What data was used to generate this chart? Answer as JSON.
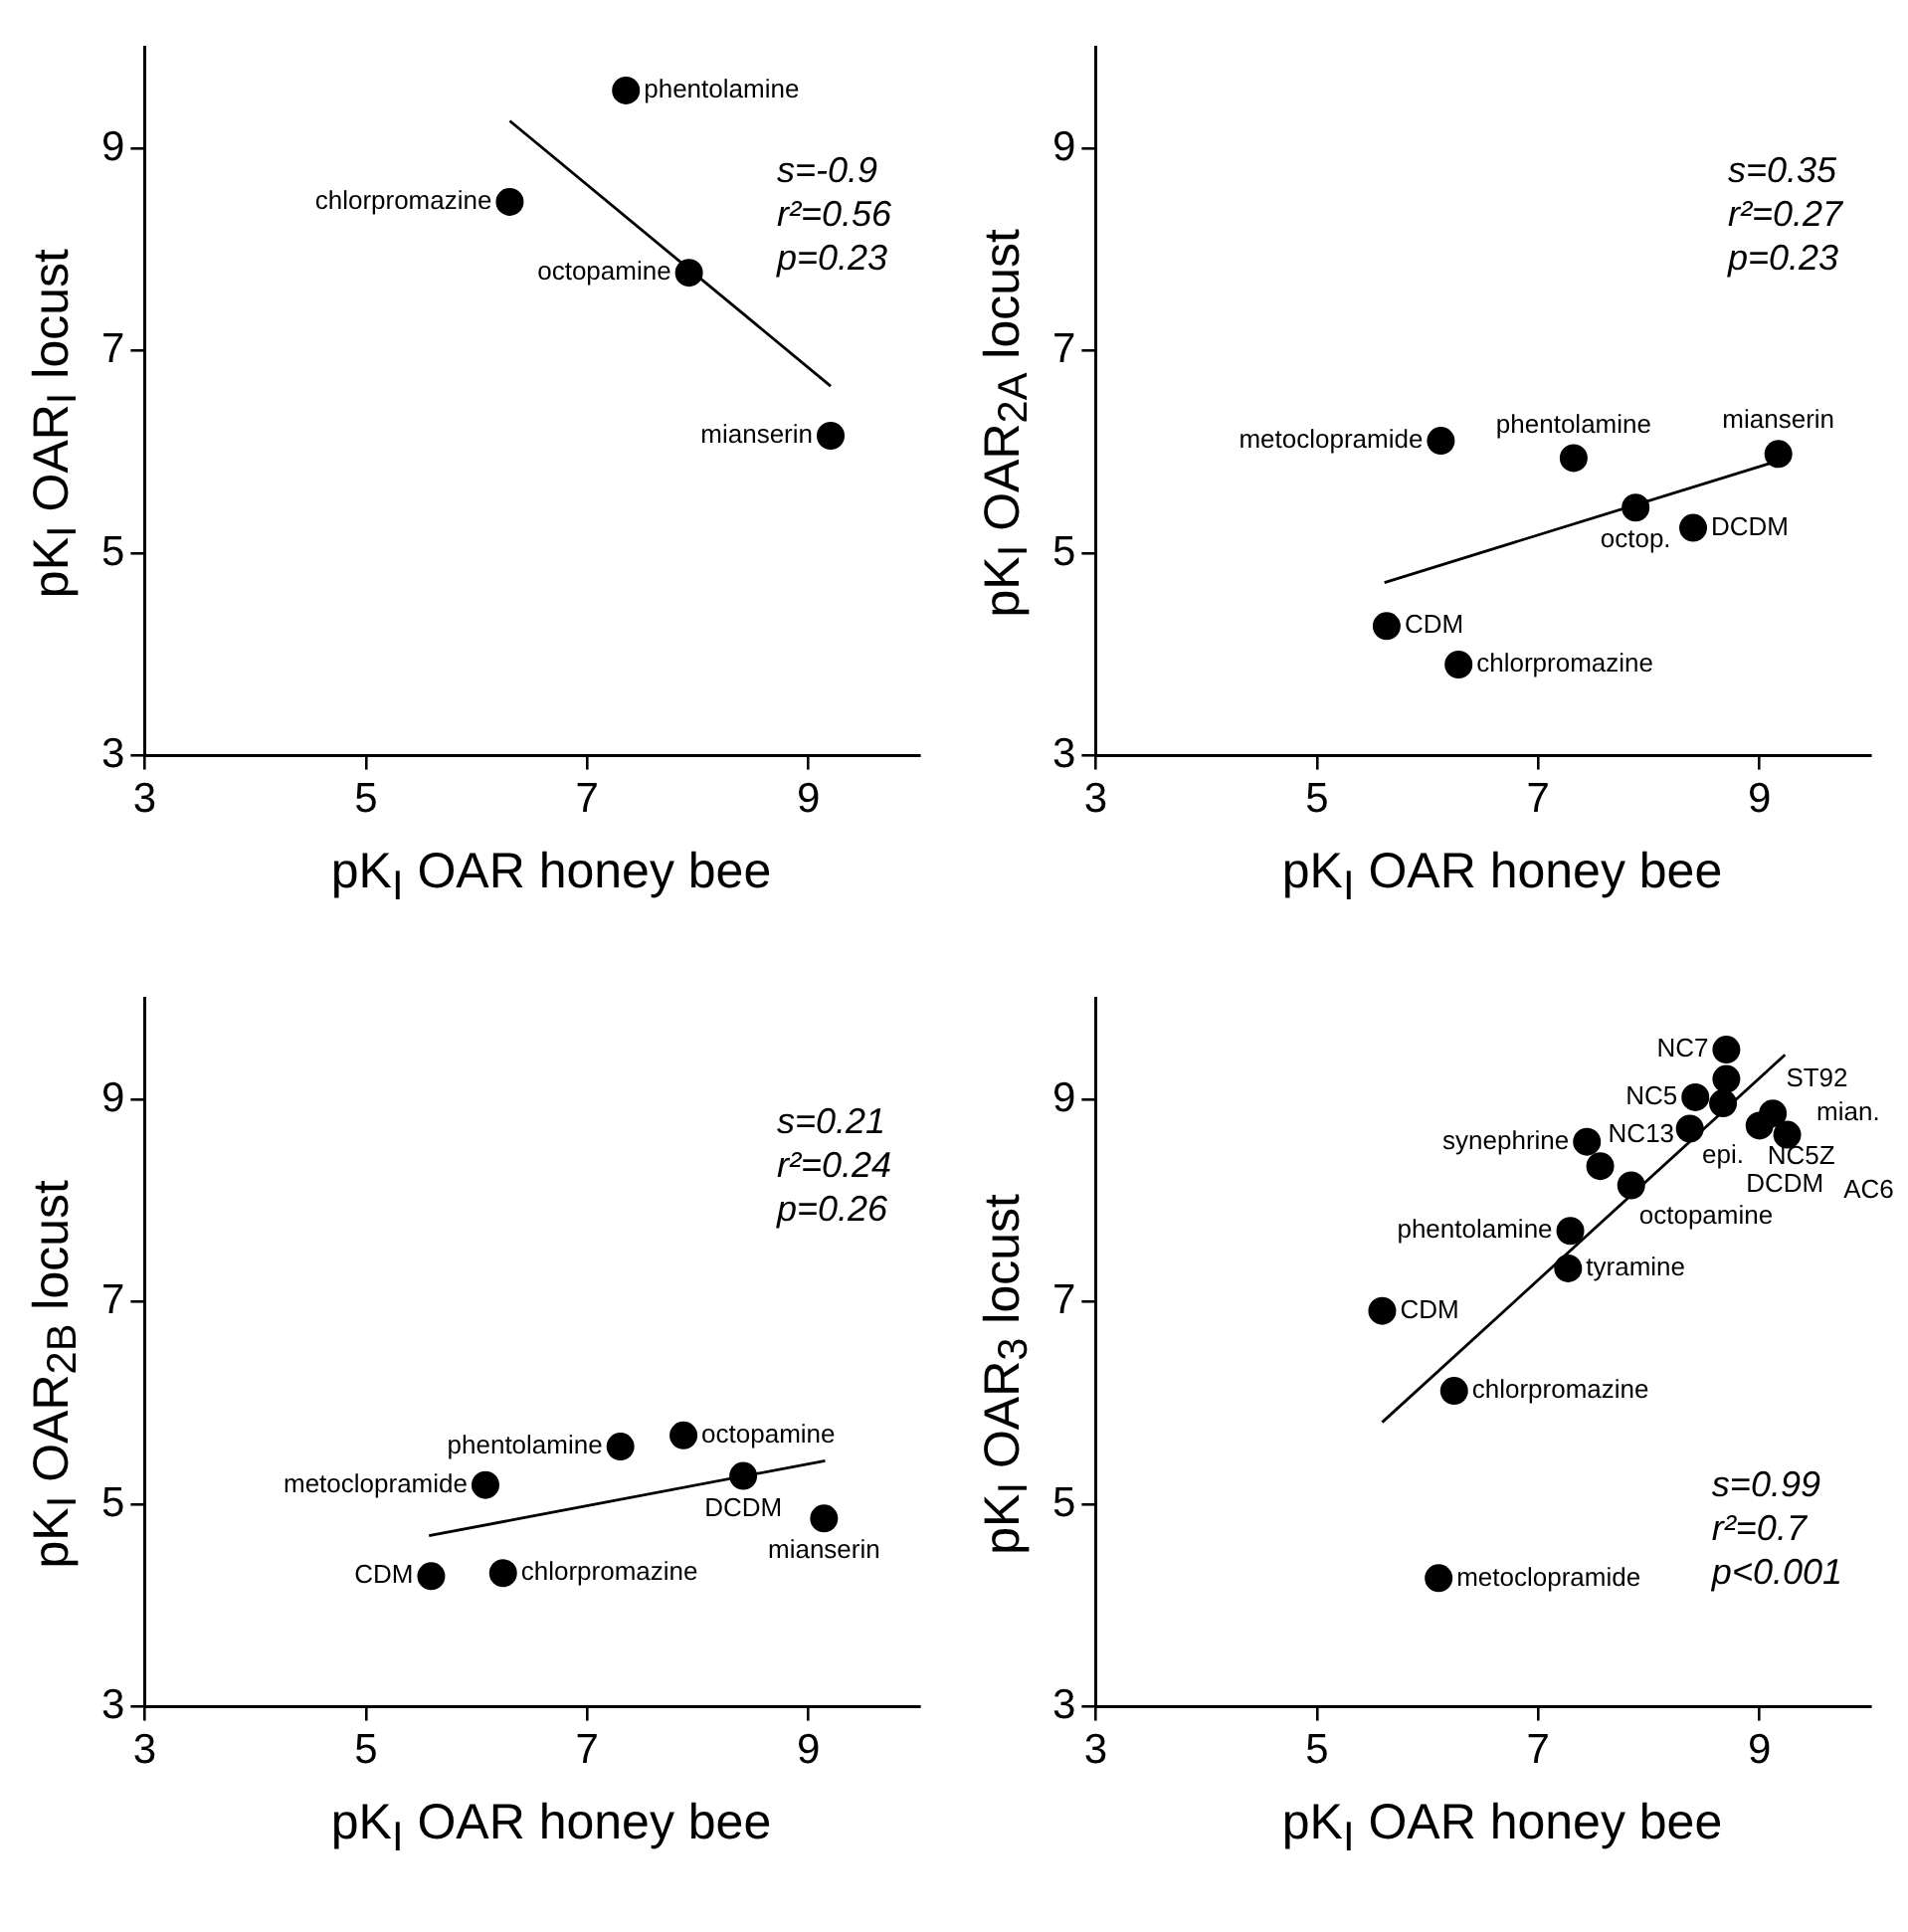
{
  "chart_data": [
    {
      "type": "scatter",
      "xlabel": "pK$_{I}$ OAR honey bee",
      "ylabel": "pK$_{I}$ OAR$_{I}$ locust",
      "xlim": [
        3,
        10
      ],
      "ylim": [
        3,
        10
      ],
      "xticks": [
        3,
        5,
        7,
        9
      ],
      "yticks": [
        3,
        5,
        7,
        9
      ],
      "grid": false,
      "legend": false,
      "annotations": [
        "s=-0.9",
        "r²=0.56",
        "p=0.23",
        {
          "text": "phentolamine",
          "x": 7.35,
          "y": 9.57
        },
        {
          "text": "chlorpromazine",
          "x": 6.3,
          "y": 8.47
        },
        {
          "text": "octopamine",
          "x": 7.92,
          "y": 7.77
        },
        {
          "text": "mianserin",
          "x": 9.2,
          "y": 6.16
        }
      ],
      "series": [
        {
          "marker": "circle",
          "color": "#000000",
          "x": [
            7.35,
            6.3,
            7.92,
            9.2
          ],
          "values": [
            9.57,
            8.47,
            7.77,
            6.16
          ]
        },
        {
          "type": "line",
          "marker": "none",
          "color": "#000000",
          "x": [
            6.3,
            9.2
          ],
          "values": [
            9.27,
            6.65
          ]
        }
      ]
    },
    {
      "type": "scatter",
      "xlabel": "pK$_{I}$ OAR honey bee",
      "ylabel": "pK$_{I}$ OAR$_{2A}$ locust",
      "xlim": [
        3,
        10
      ],
      "ylim": [
        3,
        10
      ],
      "xticks": [
        3,
        5,
        7,
        9
      ],
      "yticks": [
        3,
        5,
        7,
        9
      ],
      "grid": false,
      "legend": false,
      "annotations": [
        "s=0.35",
        "r²=0.27",
        "p=0.23",
        {
          "text": "metoclopramide",
          "x": 6.12,
          "y": 6.11
        },
        {
          "text": "phentolamine",
          "x": 7.32,
          "y": 5.94
        },
        {
          "text": "mianserin",
          "x": 9.17,
          "y": 5.98
        },
        {
          "text": "octop.",
          "x": 7.88,
          "y": 5.45
        },
        {
          "text": "DCDM",
          "x": 8.4,
          "y": 5.25
        },
        {
          "text": "CDM",
          "x": 5.63,
          "y": 4.28
        },
        {
          "text": "chlorpromazine",
          "x": 6.28,
          "y": 3.9
        }
      ],
      "series": [
        {
          "marker": "circle",
          "color": "#000000",
          "x": [
            6.12,
            7.32,
            9.17,
            7.88,
            8.4,
            5.63,
            6.28
          ],
          "values": [
            6.11,
            5.94,
            5.98,
            5.45,
            5.25,
            4.28,
            3.9
          ]
        },
        {
          "type": "line",
          "marker": "none",
          "color": "#000000",
          "x": [
            5.61,
            9.13
          ],
          "values": [
            4.71,
            5.9
          ]
        }
      ]
    },
    {
      "type": "scatter",
      "xlabel": "pK$_{I}$ OAR honey bee",
      "ylabel": "pK$_{I}$ OAR$_{2B}$ locust",
      "xlim": [
        3,
        10
      ],
      "ylim": [
        3,
        10
      ],
      "xticks": [
        3,
        5,
        7,
        9
      ],
      "yticks": [
        3,
        5,
        7,
        9
      ],
      "grid": false,
      "legend": false,
      "annotations": [
        "s=0.21",
        "r²=0.24",
        "p=0.26",
        {
          "text": "phentolamine",
          "x": 7.3,
          "y": 5.57
        },
        {
          "text": "octopamine",
          "x": 7.87,
          "y": 5.68
        },
        {
          "text": "DCDM",
          "x": 8.41,
          "y": 5.28
        },
        {
          "text": "metoclopramide",
          "x": 6.08,
          "y": 5.19
        },
        {
          "text": "mianserin",
          "x": 9.14,
          "y": 4.86
        },
        {
          "text": "CDM",
          "x": 5.59,
          "y": 4.29
        },
        {
          "text": "chlorpromazine",
          "x": 6.24,
          "y": 4.32
        }
      ],
      "series": [
        {
          "marker": "circle",
          "color": "#000000",
          "x": [
            7.3,
            7.87,
            8.41,
            6.08,
            9.14,
            5.59,
            6.24
          ],
          "values": [
            5.57,
            5.68,
            5.28,
            5.19,
            4.86,
            4.29,
            4.32
          ]
        },
        {
          "type": "line",
          "marker": "none",
          "color": "#000000",
          "x": [
            5.57,
            9.15
          ],
          "values": [
            4.69,
            5.43
          ]
        }
      ]
    },
    {
      "type": "scatter",
      "xlabel": "pK$_{I}$ OAR honey bee",
      "ylabel": "pK$_{I}$ OAR$_{3}$ locust",
      "xlim": [
        3,
        10
      ],
      "ylim": [
        3,
        10
      ],
      "xticks": [
        3,
        5,
        7,
        9
      ],
      "yticks": [
        3,
        5,
        7,
        9
      ],
      "grid": false,
      "legend": false,
      "annotations": [
        "s=0.99",
        "r²=0.7",
        "p<0.001",
        {
          "text": "NC7",
          "x": 8.7,
          "y": 9.49
        },
        {
          "text": "ST92",
          "x": 8.7,
          "y": 9.2
        },
        {
          "text": "NC5",
          "x": 8.42,
          "y": 9.02
        },
        {
          "text": "epi.",
          "x": 8.67,
          "y": 8.96
        },
        {
          "text": "DCDM",
          "x": 8.37,
          "y": 8.71
        },
        {
          "text": "mian.",
          "x": 9.12,
          "y": 8.86
        },
        {
          "text": "NC5Z",
          "x": 9.0,
          "y": 8.74
        },
        {
          "text": "AC6",
          "x": 9.25,
          "y": 8.65
        },
        {
          "text": "synephrine",
          "x": 7.44,
          "y": 8.58
        },
        {
          "text": "NC13",
          "x": 7.56,
          "y": 8.34
        },
        {
          "text": "octopamine",
          "x": 7.84,
          "y": 8.15
        },
        {
          "text": "phentolamine",
          "x": 7.29,
          "y": 7.7
        },
        {
          "text": "tyramine",
          "x": 7.27,
          "y": 7.33
        },
        {
          "text": "CDM",
          "x": 5.59,
          "y": 6.91
        },
        {
          "text": "chlorpromazine",
          "x": 6.24,
          "y": 6.12
        },
        {
          "text": "metoclopramide",
          "x": 6.1,
          "y": 4.27
        }
      ],
      "series": [
        {
          "marker": "circle",
          "color": "#000000",
          "x": [
            8.7,
            8.7,
            8.42,
            8.67,
            8.37,
            9.12,
            9.0,
            9.25,
            7.44,
            7.56,
            7.84,
            7.29,
            7.27,
            5.59,
            6.24,
            6.1
          ],
          "values": [
            9.49,
            9.2,
            9.02,
            8.96,
            8.71,
            8.86,
            8.74,
            8.65,
            8.58,
            8.34,
            8.15,
            7.7,
            7.33,
            6.91,
            6.12,
            4.27
          ]
        },
        {
          "type": "line",
          "marker": "none",
          "color": "#000000",
          "x": [
            5.59,
            9.23
          ],
          "values": [
            5.81,
            9.44
          ]
        }
      ]
    }
  ]
}
